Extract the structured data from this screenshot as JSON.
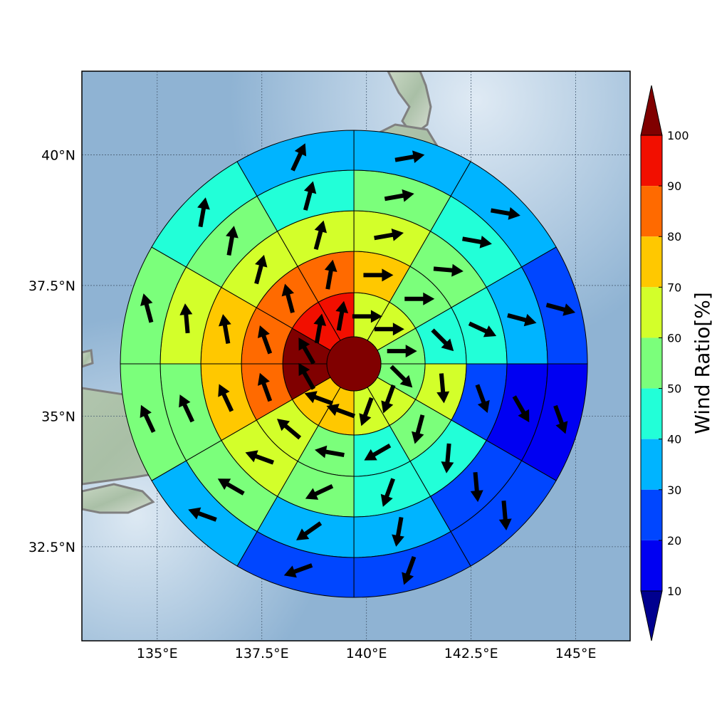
{
  "chart_data": {
    "type": "polar-sector-map",
    "title": "",
    "x_ticks": [
      {
        "value": 135.0,
        "label": "135°E"
      },
      {
        "value": 137.5,
        "label": "137.5°E"
      },
      {
        "value": 140.0,
        "label": "140°E"
      },
      {
        "value": 142.5,
        "label": "142.5°E"
      },
      {
        "value": 145.0,
        "label": "145°E"
      }
    ],
    "y_ticks": [
      {
        "value": 32.5,
        "label": "32.5°N"
      },
      {
        "value": 35.0,
        "label": "35°N"
      },
      {
        "value": 37.5,
        "label": "37.5°N"
      },
      {
        "value": 40.0,
        "label": "40°N"
      }
    ],
    "xlim": [
      133.2,
      146.3
    ],
    "ylim": [
      30.7,
      41.6
    ],
    "grid": true,
    "center": {
      "lon": 139.7,
      "lat": 36.0
    },
    "core": {
      "value_percent": 100
    },
    "colorbar": {
      "label": "Wind Ratio[%]",
      "ticks": [
        "10",
        "20",
        "30",
        "40",
        "50",
        "60",
        "70",
        "80",
        "90",
        "100"
      ],
      "levels": [
        0,
        10,
        20,
        30,
        40,
        50,
        60,
        70,
        80,
        90,
        100
      ],
      "colors": [
        "#00008f",
        "#0000f2",
        "#0046ff",
        "#00b4ff",
        "#22ffd8",
        "#7bff7b",
        "#d3ff2a",
        "#ffc800",
        "#ff6a00",
        "#f20f00",
        "#800000"
      ],
      "under_color": "#00008f",
      "over_color": "#800000",
      "extend": "both"
    },
    "sector_bearing_deg": [
      0,
      30,
      60,
      90,
      120,
      150,
      180,
      210,
      240,
      270,
      300,
      330
    ],
    "rings": [
      {
        "ring": 1,
        "sectors": [
          {
            "value_percent": 60,
            "wind_dir_deg": 90
          },
          {
            "value_percent": 60,
            "wind_dir_deg": 90
          },
          {
            "value_percent": 50,
            "wind_dir_deg": 90
          },
          {
            "value_percent": 50,
            "wind_dir_deg": 135
          },
          {
            "value_percent": 60,
            "wind_dir_deg": 200
          },
          {
            "value_percent": 60,
            "wind_dir_deg": 200
          },
          {
            "value_percent": 70,
            "wind_dir_deg": 290
          },
          {
            "value_percent": 70,
            "wind_dir_deg": 290
          },
          {
            "value_percent": 100,
            "wind_dir_deg": 330
          },
          {
            "value_percent": 100,
            "wind_dir_deg": 330
          },
          {
            "value_percent": 95,
            "wind_dir_deg": 10
          },
          {
            "value_percent": 95,
            "wind_dir_deg": 10
          }
        ]
      },
      {
        "ring": 2,
        "sectors": [
          {
            "value_percent": 70,
            "wind_dir_deg": 90
          },
          {
            "value_percent": 50,
            "wind_dir_deg": 90
          },
          {
            "value_percent": 40,
            "wind_dir_deg": 135
          },
          {
            "value_percent": 60,
            "wind_dir_deg": 175
          },
          {
            "value_percent": 55,
            "wind_dir_deg": 195
          },
          {
            "value_percent": 45,
            "wind_dir_deg": 240
          },
          {
            "value_percent": 55,
            "wind_dir_deg": 280
          },
          {
            "value_percent": 65,
            "wind_dir_deg": 310
          },
          {
            "value_percent": 85,
            "wind_dir_deg": 340
          },
          {
            "value_percent": 85,
            "wind_dir_deg": 340
          },
          {
            "value_percent": 85,
            "wind_dir_deg": 345
          },
          {
            "value_percent": 85,
            "wind_dir_deg": 10
          }
        ]
      },
      {
        "ring": 3,
        "sectors": [
          {
            "value_percent": 60,
            "wind_dir_deg": 80
          },
          {
            "value_percent": 55,
            "wind_dir_deg": 95
          },
          {
            "value_percent": 40,
            "wind_dir_deg": 115
          },
          {
            "value_percent": 25,
            "wind_dir_deg": 160
          },
          {
            "value_percent": 40,
            "wind_dir_deg": 185
          },
          {
            "value_percent": 45,
            "wind_dir_deg": 200
          },
          {
            "value_percent": 50,
            "wind_dir_deg": 245
          },
          {
            "value_percent": 60,
            "wind_dir_deg": 290
          },
          {
            "value_percent": 75,
            "wind_dir_deg": 335
          },
          {
            "value_percent": 75,
            "wind_dir_deg": 350
          },
          {
            "value_percent": 60,
            "wind_dir_deg": 15
          },
          {
            "value_percent": 65,
            "wind_dir_deg": 15
          }
        ]
      },
      {
        "ring": 4,
        "sectors": [
          {
            "value_percent": 55,
            "wind_dir_deg": 80
          },
          {
            "value_percent": 45,
            "wind_dir_deg": 100
          },
          {
            "value_percent": 35,
            "wind_dir_deg": 105
          },
          {
            "value_percent": 15,
            "wind_dir_deg": 150
          },
          {
            "value_percent": 25,
            "wind_dir_deg": 175
          },
          {
            "value_percent": 35,
            "wind_dir_deg": 190
          },
          {
            "value_percent": 35,
            "wind_dir_deg": 235
          },
          {
            "value_percent": 55,
            "wind_dir_deg": 300
          },
          {
            "value_percent": 55,
            "wind_dir_deg": 335
          },
          {
            "value_percent": 65,
            "wind_dir_deg": 355
          },
          {
            "value_percent": 55,
            "wind_dir_deg": 10
          },
          {
            "value_percent": 45,
            "wind_dir_deg": 15
          }
        ]
      },
      {
        "ring": 5,
        "sectors": [
          {
            "value_percent": 35,
            "wind_dir_deg": 80
          },
          {
            "value_percent": 35,
            "wind_dir_deg": 100
          },
          {
            "value_percent": 25,
            "wind_dir_deg": 105
          },
          {
            "value_percent": 15,
            "wind_dir_deg": 160
          },
          {
            "value_percent": 25,
            "wind_dir_deg": 175
          },
          {
            "value_percent": 25,
            "wind_dir_deg": 200
          },
          {
            "value_percent": 25,
            "wind_dir_deg": 250
          },
          {
            "value_percent": 35,
            "wind_dir_deg": 290
          },
          {
            "value_percent": 50,
            "wind_dir_deg": 335
          },
          {
            "value_percent": 50,
            "wind_dir_deg": 345
          },
          {
            "value_percent": 45,
            "wind_dir_deg": 10
          },
          {
            "value_percent": 35,
            "wind_dir_deg": 25
          }
        ]
      }
    ]
  }
}
